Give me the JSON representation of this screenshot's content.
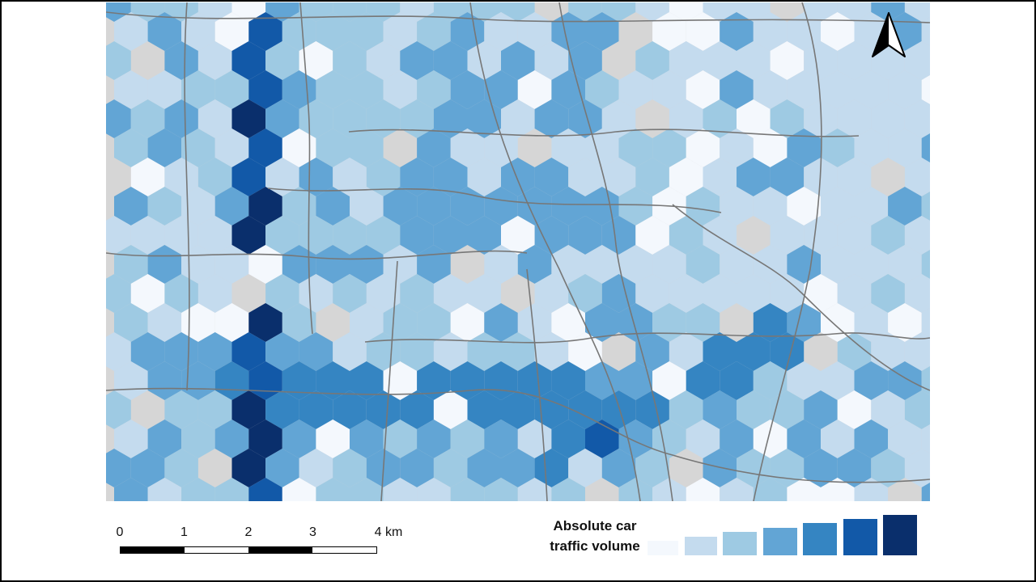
{
  "legend": {
    "title_line1": "Absolute car",
    "title_line2": "traffic volume",
    "classes": [
      {
        "color": "#f4f8fd"
      },
      {
        "color": "#c4dbee"
      },
      {
        "color": "#9ecae3"
      },
      {
        "color": "#62a5d5"
      },
      {
        "color": "#3585c2"
      },
      {
        "color": "#1259a8"
      },
      {
        "color": "#0a2f6c"
      }
    ]
  },
  "scale_bar": {
    "labels": [
      "0",
      "1",
      "2",
      "3",
      "4 km"
    ],
    "segment_colors": [
      "#000000",
      "#ffffff",
      "#000000",
      "#ffffff"
    ]
  },
  "north_arrow": {
    "icon": "north-arrow-icon"
  },
  "basemap": {
    "color": "#d6d6d6",
    "road_color": "#777777"
  }
}
